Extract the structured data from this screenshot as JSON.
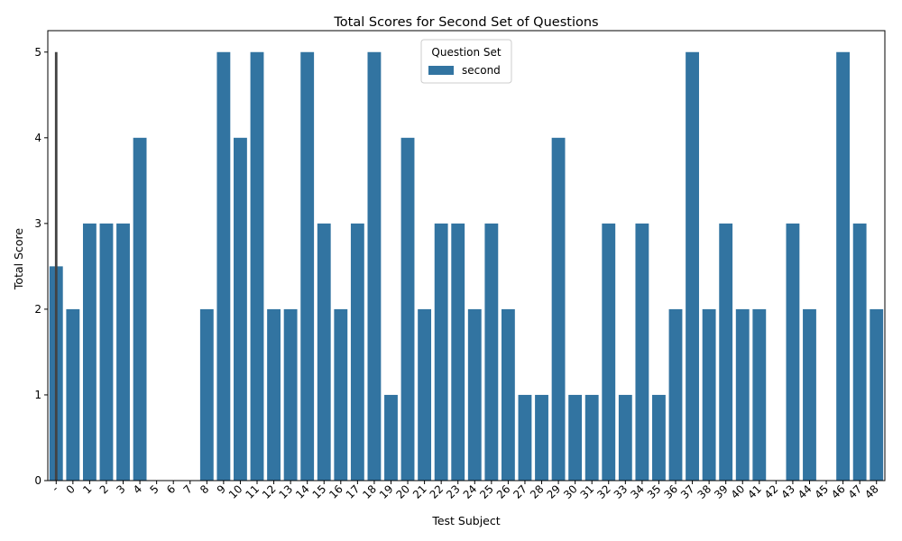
{
  "chart_data": {
    "type": "bar",
    "title": "Total Scores for Second Set of Questions",
    "xlabel": "Test Subject",
    "ylabel": "Total Score",
    "ylim": [
      0,
      5.25
    ],
    "yticks": [
      0,
      1,
      2,
      3,
      4,
      5
    ],
    "grid": false,
    "legend": {
      "title": "Question Set",
      "placement": "top-center",
      "entries": [
        "second"
      ]
    },
    "bar_color": "#3274a1",
    "errorbar_color": "#424242",
    "categories": [
      "-",
      "0",
      "1",
      "2",
      "3",
      "4",
      "5",
      "6",
      "7",
      "8",
      "9",
      "10",
      "11",
      "12",
      "13",
      "14",
      "15",
      "16",
      "17",
      "18",
      "19",
      "20",
      "21",
      "22",
      "23",
      "24",
      "25",
      "26",
      "27",
      "28",
      "29",
      "30",
      "31",
      "32",
      "33",
      "34",
      "35",
      "36",
      "37",
      "38",
      "39",
      "40",
      "41",
      "42",
      "43",
      "44",
      "45",
      "46",
      "47",
      "48"
    ],
    "series": [
      {
        "name": "second",
        "values": [
          2.5,
          2,
          3,
          3,
          3,
          4,
          0,
          0,
          0,
          2,
          5,
          4,
          5,
          2,
          2,
          5,
          3,
          2,
          3,
          5,
          1,
          4,
          2,
          3,
          3,
          2,
          3,
          2,
          1,
          1,
          4,
          1,
          1,
          3,
          1,
          3,
          1,
          2,
          5,
          2,
          3,
          2,
          2,
          0,
          3,
          2,
          0,
          5,
          3,
          2
        ]
      }
    ],
    "error_bars": [
      {
        "category": "-",
        "low": 0,
        "high": 5
      }
    ]
  }
}
